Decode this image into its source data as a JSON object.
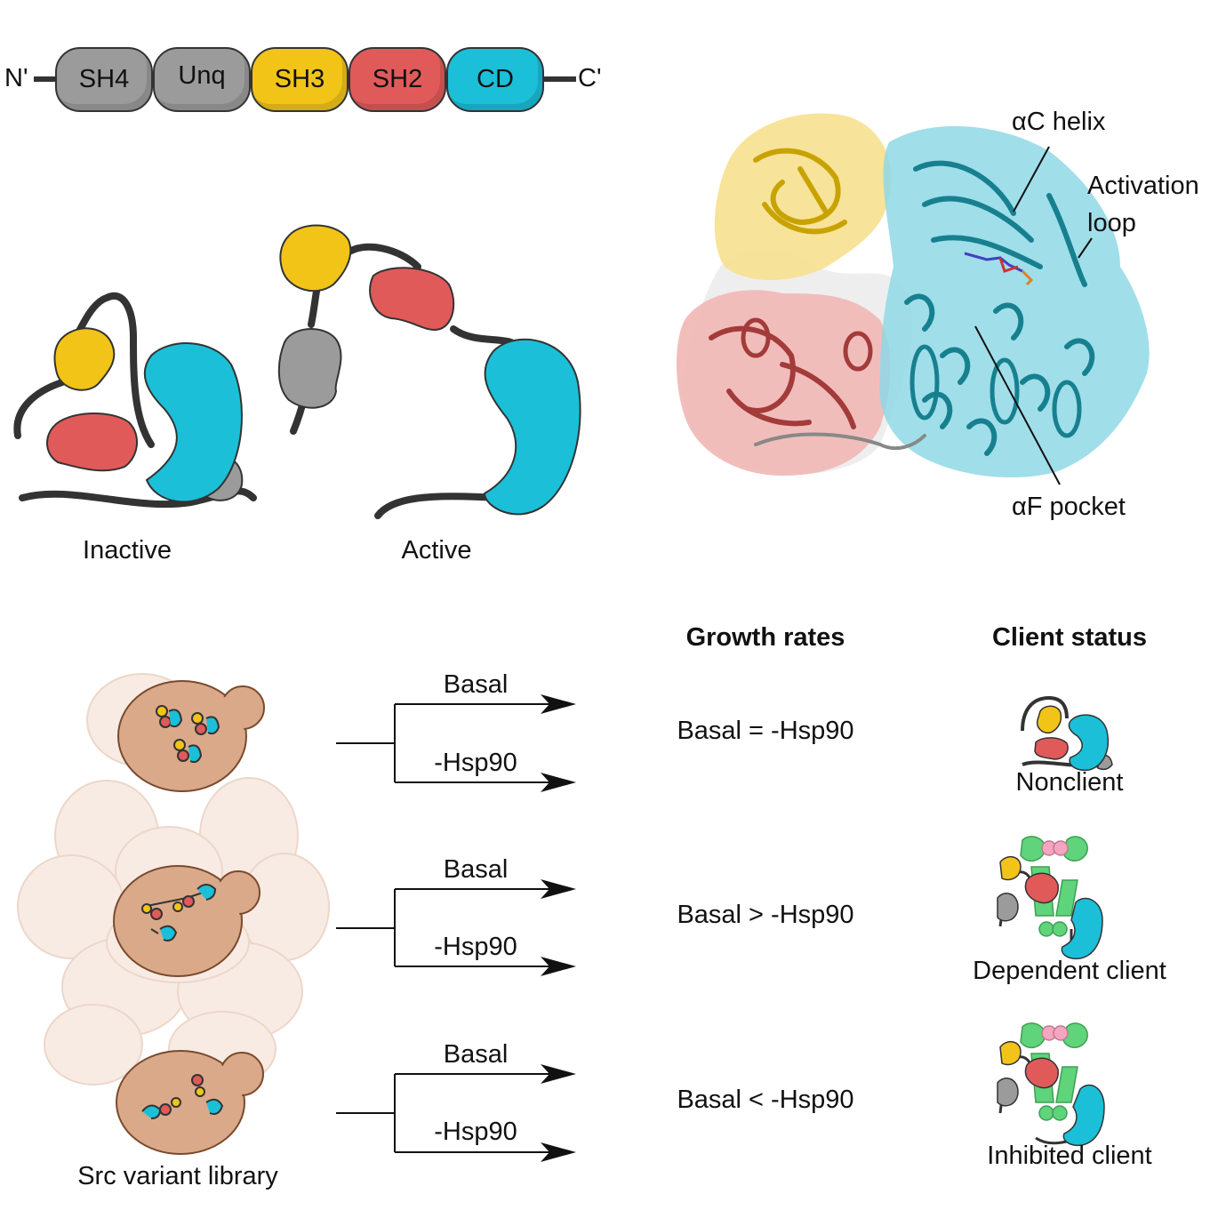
{
  "domain_bar": {
    "n_term": "N'",
    "c_term": "C'",
    "domains": [
      {
        "label": "SH4",
        "color": "#9b9b9b"
      },
      {
        "label": "Unq",
        "color": "#9b9b9b"
      },
      {
        "label": "SH3",
        "color": "#f2c418"
      },
      {
        "label": "SH2",
        "color": "#e15a5a"
      },
      {
        "label": "CD",
        "color": "#1bbfd8"
      }
    ]
  },
  "conformations": {
    "inactive_label": "Inactive",
    "active_label": "Active"
  },
  "structure": {
    "labels": {
      "ac_helix": "αC helix",
      "activation_loop_1": "Activation",
      "activation_loop_2": "loop",
      "af_pocket": "αF pocket"
    }
  },
  "experiment": {
    "headers": {
      "growth_rates": "Growth rates",
      "client_status": "Client status"
    },
    "library_label": "Src variant library",
    "rows": [
      {
        "branch_top": "Basal",
        "branch_bottom": "-Hsp90",
        "growth": "Basal = -Hsp90",
        "status": "Nonclient"
      },
      {
        "branch_top": "Basal",
        "branch_bottom": "-Hsp90",
        "growth": "Basal > -Hsp90",
        "status": "Dependent client"
      },
      {
        "branch_top": "Basal",
        "branch_bottom": "-Hsp90",
        "growth": "Basal < -Hsp90",
        "status": "Inhibited client"
      }
    ]
  },
  "colors": {
    "gray": "#9b9b9b",
    "yellow": "#f2c418",
    "red": "#e15a5a",
    "cyan": "#1bbfd8",
    "green": "#5fd47a",
    "pink": "#f4a6c0",
    "yeast": "#d9a98a",
    "yeast_faint": "#f6e6dc"
  }
}
